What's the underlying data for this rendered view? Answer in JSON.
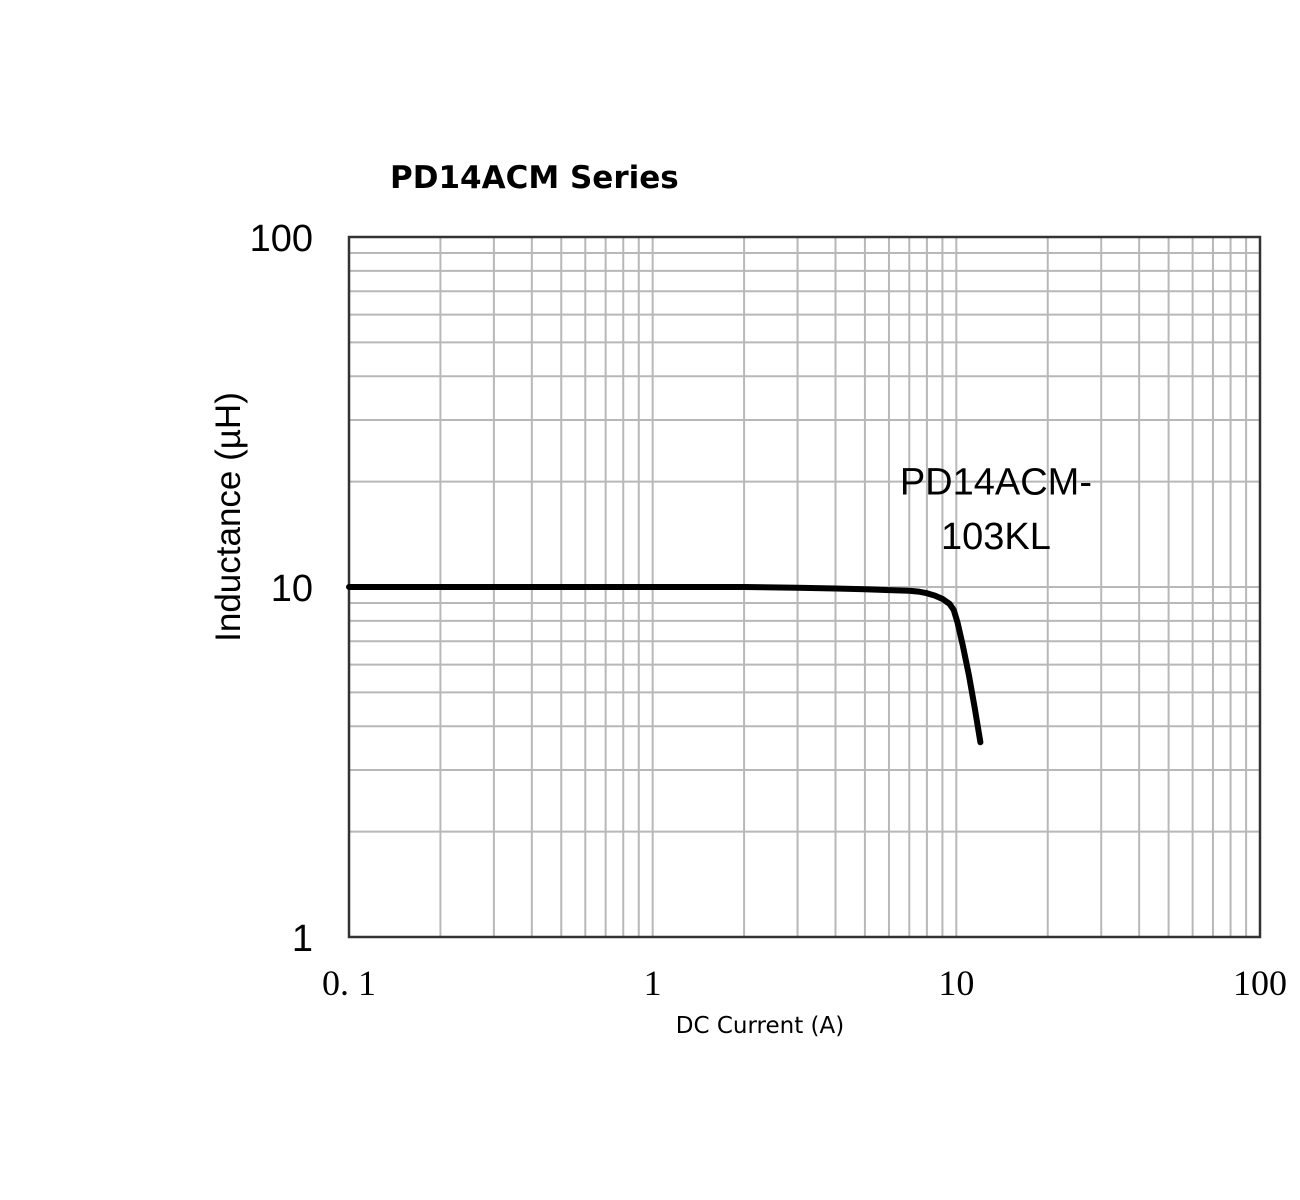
{
  "chart_data": {
    "type": "line",
    "title": "PD14ACM  Series",
    "xlabel": "DC Current (A)",
    "ylabel": "Inductance (µH)",
    "xscale": "log",
    "yscale": "log",
    "xlim": [
      0.1,
      100
    ],
    "ylim": [
      1,
      100
    ],
    "grid": true,
    "x_ticks": [
      {
        "value": 0.1,
        "label": "0. 1"
      },
      {
        "value": 1,
        "label": "1"
      },
      {
        "value": 10,
        "label": "10"
      },
      {
        "value": 100,
        "label": "100"
      }
    ],
    "y_ticks": [
      {
        "value": 1,
        "label": "1"
      },
      {
        "value": 10,
        "label": "10"
      },
      {
        "value": 100,
        "label": "100"
      }
    ],
    "series": [
      {
        "color": "#000000",
        "x": [
          0.1,
          0.5,
          1,
          2,
          3,
          4,
          5,
          6,
          7,
          7.5,
          8,
          8.5,
          9,
          9.5,
          9.8,
          10.1,
          10.5,
          11,
          11.5,
          12
        ],
        "y": [
          10,
          10,
          10,
          10,
          9.95,
          9.9,
          9.85,
          9.8,
          9.75,
          9.7,
          9.6,
          9.45,
          9.25,
          8.95,
          8.6,
          7.9,
          6.8,
          5.6,
          4.5,
          3.6
        ]
      }
    ],
    "annotations": [
      {
        "text": "PD14ACM-",
        "x": 13.5,
        "y": 20
      },
      {
        "text": "103KL",
        "x": 13.5,
        "y": 14
      }
    ]
  }
}
